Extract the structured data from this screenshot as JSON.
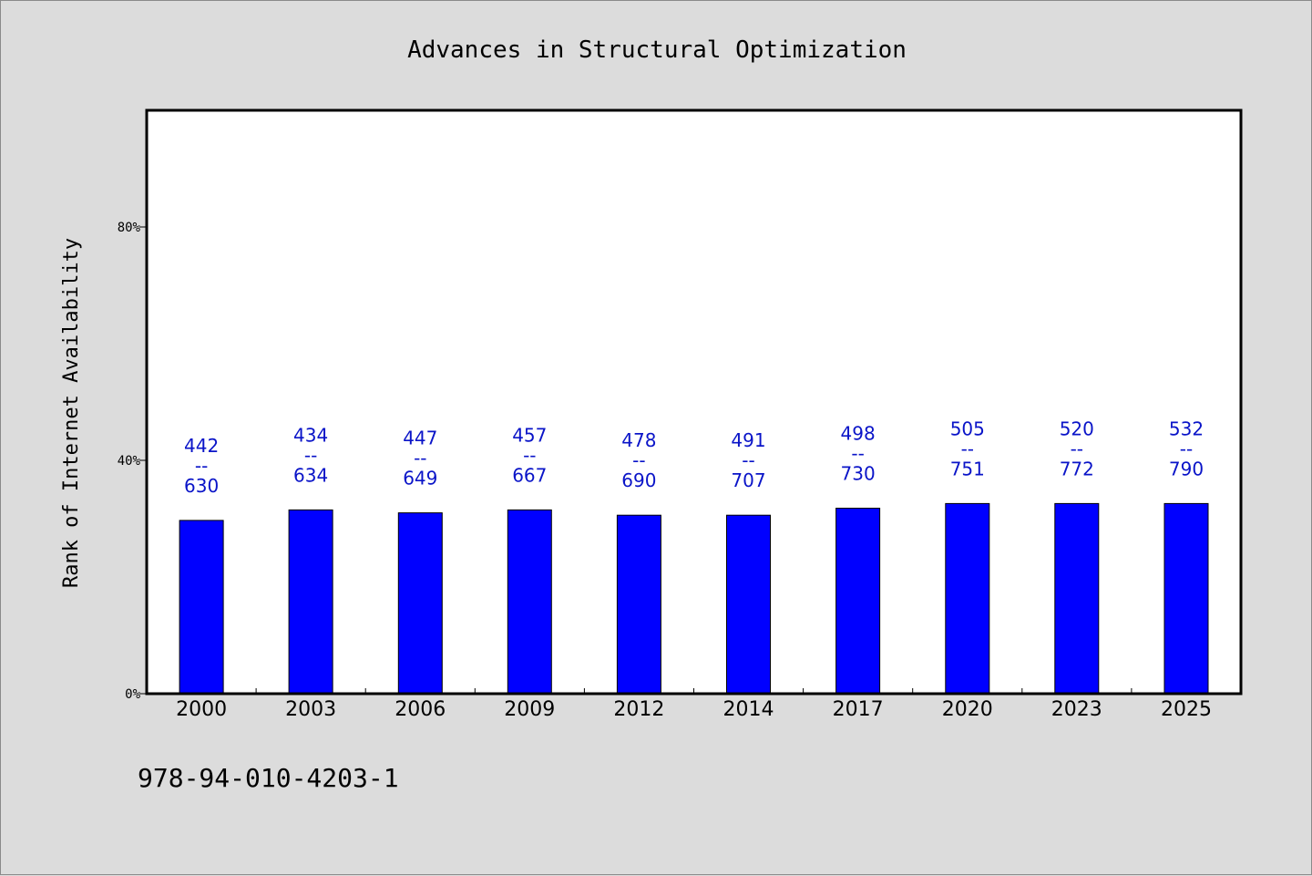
{
  "chart_data": {
    "type": "bar",
    "title": "Advances in Structural Optimization",
    "ylabel": "Rank of Internet Availability",
    "xlabel": "",
    "categories": [
      "2000",
      "2003",
      "2006",
      "2009",
      "2012",
      "2014",
      "2017",
      "2020",
      "2023",
      "2025"
    ],
    "values": [
      29.7,
      31.5,
      31.0,
      31.5,
      30.6,
      30.6,
      31.8,
      32.6,
      32.6,
      32.6
    ],
    "data_labels": [
      {
        "top": "442",
        "sep": "--",
        "bottom": "630"
      },
      {
        "top": "434",
        "sep": "--",
        "bottom": "634"
      },
      {
        "top": "447",
        "sep": "--",
        "bottom": "649"
      },
      {
        "top": "457",
        "sep": "--",
        "bottom": "667"
      },
      {
        "top": "478",
        "sep": "--",
        "bottom": "690"
      },
      {
        "top": "491",
        "sep": "--",
        "bottom": "707"
      },
      {
        "top": "498",
        "sep": "--",
        "bottom": "730"
      },
      {
        "top": "505",
        "sep": "--",
        "bottom": "751"
      },
      {
        "top": "520",
        "sep": "--",
        "bottom": "772"
      },
      {
        "top": "532",
        "sep": "--",
        "bottom": "790"
      }
    ],
    "ylim": [
      0,
      100
    ],
    "yticks": [
      0,
      40,
      80
    ],
    "ytick_labels": [
      "0%",
      "40%",
      "80%"
    ],
    "grid": false,
    "legend": "none",
    "colors": {
      "bar": "#0000ff",
      "data_label": "#0a14c8",
      "background": "#dcdcdc",
      "plot_background": "#ffffff"
    }
  },
  "footer": {
    "isbn": "978-94-010-4203-1"
  }
}
